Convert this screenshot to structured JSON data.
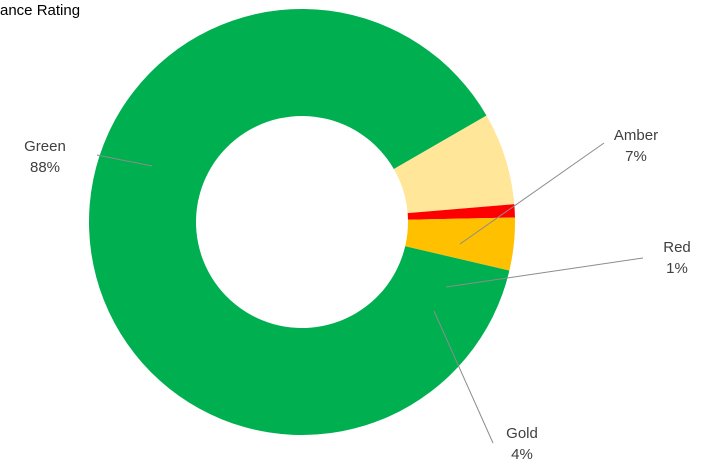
{
  "chart_data": {
    "type": "pie",
    "title": "ance Rating",
    "donut": true,
    "slices": [
      {
        "label": "Green",
        "value": 88,
        "display": "88%",
        "color": "#00B050"
      },
      {
        "label": "Amber",
        "value": 7,
        "display": "7%",
        "color": "#FFE699"
      },
      {
        "label": "Red",
        "value": 1,
        "display": "1%",
        "color": "#FF0000"
      },
      {
        "label": "Gold",
        "value": 4,
        "display": "4%",
        "color": "#FFC000"
      }
    ],
    "legend": "none",
    "labels": "outside with leader lines"
  }
}
